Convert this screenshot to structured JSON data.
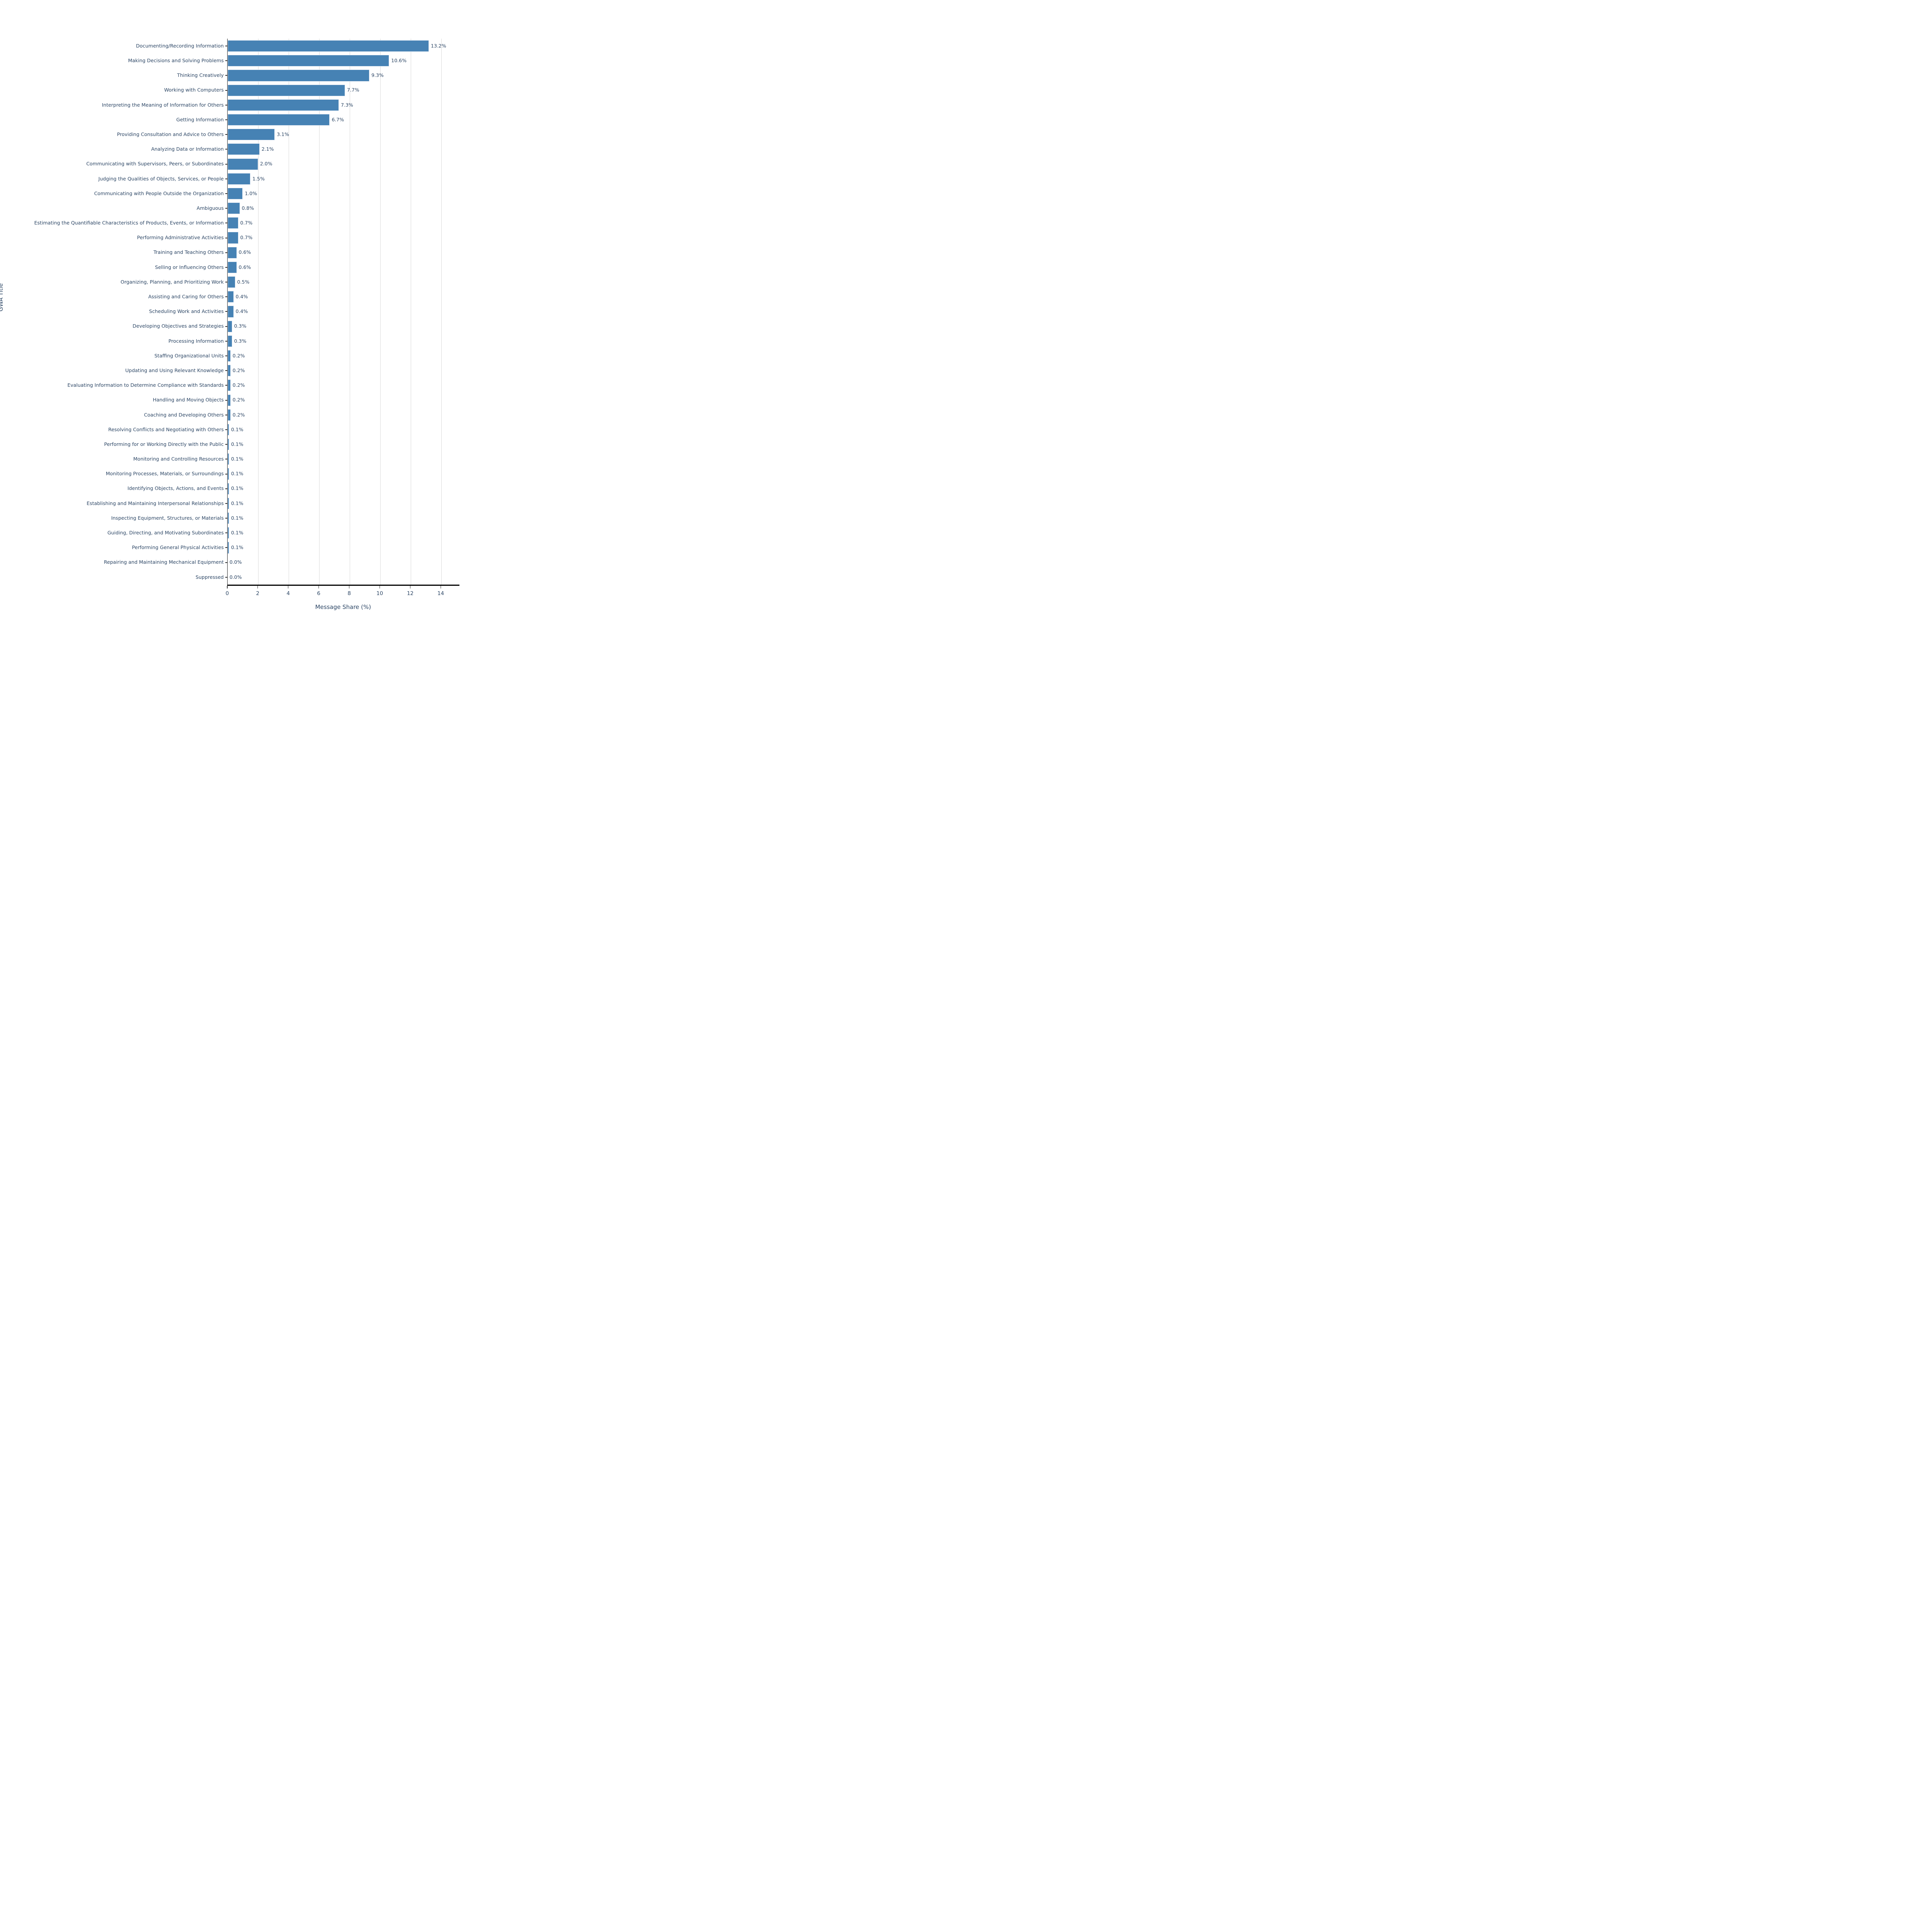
{
  "chart_data": {
    "type": "bar",
    "orientation": "horizontal",
    "title": "",
    "xlabel": "Message Share (%)",
    "ylabel": "GWA Title",
    "xlim": [
      0,
      15.2
    ],
    "xticks": [
      0,
      2,
      4,
      6,
      8,
      10,
      12,
      14
    ],
    "xtick_labels": [
      "0",
      "2",
      "4",
      "6",
      "8",
      "10",
      "12",
      "14"
    ],
    "grid": true,
    "legend": false,
    "bar_color": "#4682b4",
    "bar_edge_color": "#d9e4f1",
    "text_color": "#2c4665",
    "gridline_color": "#d9d9d9",
    "categories": [
      "Documenting/Recording Information",
      "Making Decisions and Solving Problems",
      "Thinking Creatively",
      "Working with Computers",
      "Interpreting the Meaning of Information for Others",
      "Getting Information",
      "Providing Consultation and Advice to Others",
      "Analyzing Data or Information",
      "Communicating with Supervisors, Peers, or Subordinates",
      "Judging the Qualities of Objects, Services, or People",
      "Communicating with People Outside the Organization",
      "Ambiguous",
      "Estimating the Quantifiable Characteristics of Products, Events, or Information",
      "Performing Administrative Activities",
      "Training and Teaching Others",
      "Selling or Influencing Others",
      "Organizing, Planning, and Prioritizing Work",
      "Assisting and Caring for Others",
      "Scheduling Work and Activities",
      "Developing Objectives and Strategies",
      "Processing Information",
      "Staffing Organizational Units",
      "Updating and Using Relevant Knowledge",
      "Evaluating Information to Determine Compliance with Standards",
      "Handling and Moving Objects",
      "Coaching and Developing Others",
      "Resolving Conflicts and Negotiating with Others",
      "Performing for or Working Directly with the Public",
      "Monitoring and Controlling Resources",
      "Monitoring Processes, Materials, or Surroundings",
      "Identifying Objects, Actions, and Events",
      "Establishing and Maintaining Interpersonal Relationships",
      "Inspecting Equipment, Structures, or Materials",
      "Guiding, Directing, and Motivating Subordinates",
      "Performing General Physical Activities",
      "Repairing and Maintaining Mechanical Equipment",
      "Suppressed"
    ],
    "values": [
      13.2,
      10.6,
      9.3,
      7.7,
      7.3,
      6.7,
      3.1,
      2.1,
      2.0,
      1.5,
      1.0,
      0.8,
      0.7,
      0.7,
      0.6,
      0.6,
      0.5,
      0.4,
      0.4,
      0.3,
      0.3,
      0.2,
      0.2,
      0.2,
      0.2,
      0.2,
      0.1,
      0.1,
      0.1,
      0.1,
      0.1,
      0.1,
      0.1,
      0.1,
      0.1,
      0.0,
      0.0
    ],
    "value_labels": [
      "13.2%",
      "10.6%",
      "9.3%",
      "7.7%",
      "7.3%",
      "6.7%",
      "3.1%",
      "2.1%",
      "2.0%",
      "1.5%",
      "1.0%",
      "0.8%",
      "0.7%",
      "0.7%",
      "0.6%",
      "0.6%",
      "0.5%",
      "0.4%",
      "0.4%",
      "0.3%",
      "0.3%",
      "0.2%",
      "0.2%",
      "0.2%",
      "0.2%",
      "0.2%",
      "0.1%",
      "0.1%",
      "0.1%",
      "0.1%",
      "0.1%",
      "0.1%",
      "0.1%",
      "0.1%",
      "0.1%",
      "0.0%",
      "0.0%"
    ]
  }
}
